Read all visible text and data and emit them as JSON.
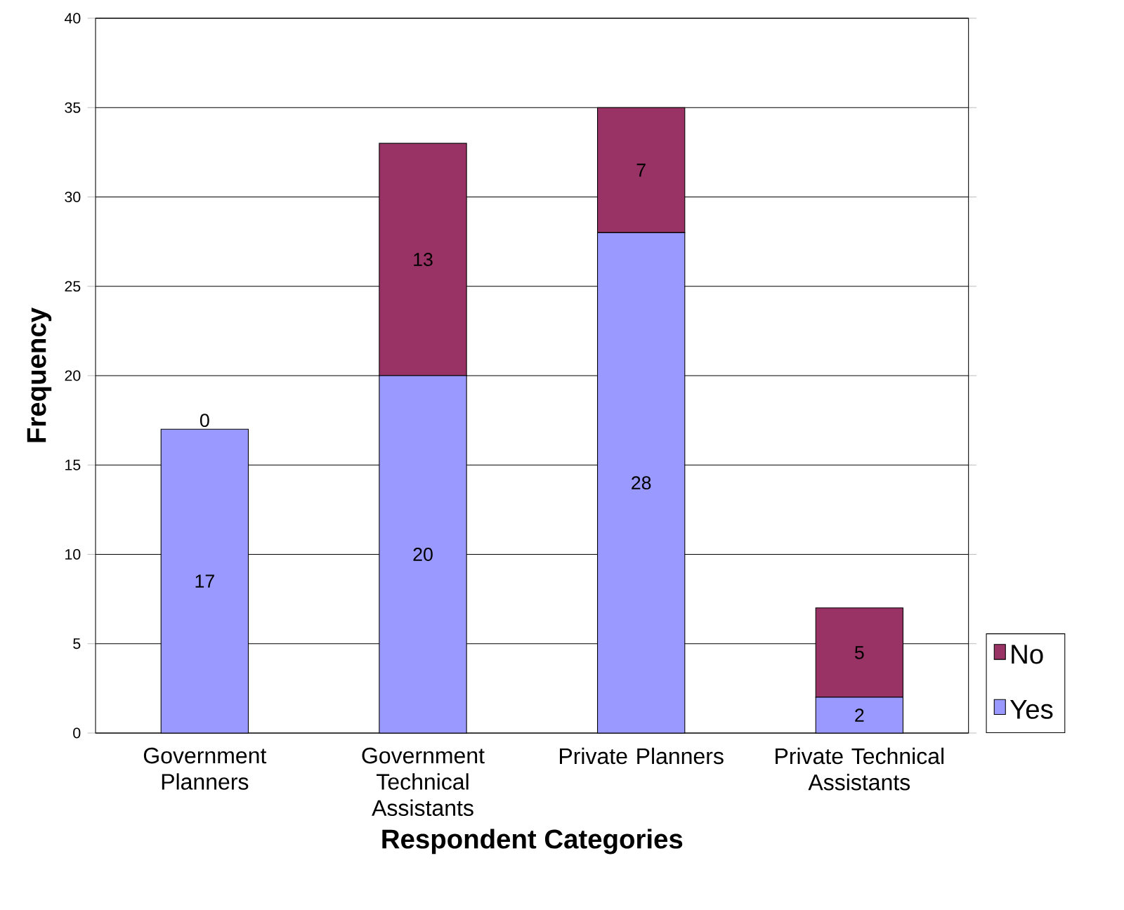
{
  "chart_data": {
    "type": "bar",
    "stacked": true,
    "xlabel": "Respondent Categories",
    "ylabel": "Frequency",
    "categories": [
      "Government Planners",
      "Government Technical Assistants",
      "Private Planners",
      "Private Technical Assistants"
    ],
    "series": [
      {
        "name": "Yes",
        "color": "#9999ff",
        "values": [
          17,
          20,
          28,
          2
        ]
      },
      {
        "name": "No",
        "color": "#993366",
        "values": [
          0,
          13,
          7,
          5
        ]
      }
    ],
    "ylim": [
      0,
      40
    ],
    "yticks": [
      0,
      5,
      10,
      15,
      20,
      25,
      30,
      35,
      40
    ],
    "grid": "y",
    "legend": "right",
    "data_labels": true
  }
}
